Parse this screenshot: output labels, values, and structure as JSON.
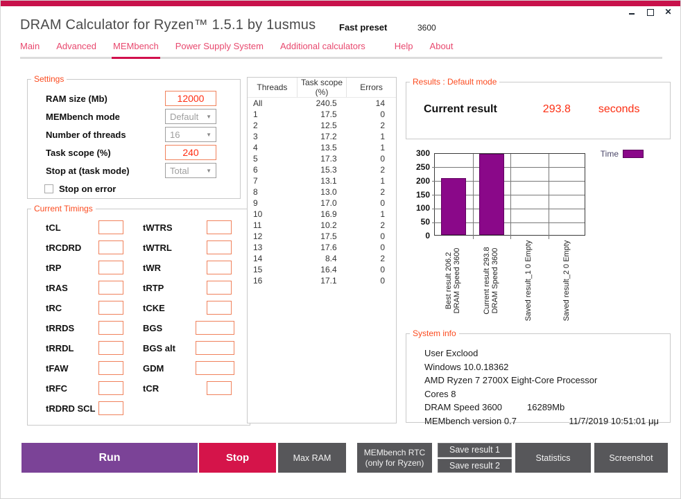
{
  "window": {
    "title": "DRAM Calculator for Ryzen™ 1.5.1 by 1usmus",
    "preset_label": "Fast preset",
    "preset_value": "3600"
  },
  "tabs": [
    {
      "label": "Main",
      "active": false
    },
    {
      "label": "Advanced",
      "active": false
    },
    {
      "label": "MEMbench",
      "active": true
    },
    {
      "label": "Power Supply System",
      "active": false
    },
    {
      "label": "Additional calculators",
      "active": false
    },
    {
      "label": "Help",
      "active": false,
      "gap_before": true
    },
    {
      "label": "About",
      "active": false
    }
  ],
  "icons": {
    "dropdown_arrow": "▼"
  },
  "settings": {
    "title": "Settings",
    "fields": [
      {
        "label": "RAM size (Mb)",
        "type": "input",
        "value": "12000"
      },
      {
        "label": "MEMbench mode",
        "type": "select",
        "value": "Default"
      },
      {
        "label": "Number of threads",
        "type": "select",
        "value": "16"
      },
      {
        "label": "Task scope (%)",
        "type": "input",
        "value": "240"
      },
      {
        "label": "Stop at (task mode)",
        "type": "select",
        "value": "Total"
      }
    ],
    "checkbox": {
      "label": "Stop on error",
      "checked": false
    }
  },
  "timings": {
    "title": "Current Timings",
    "left": [
      "tCL",
      "tRCDRD",
      "tRP",
      "tRAS",
      "tRC",
      "tRRDS",
      "tRRDL",
      "tFAW",
      "tRFC",
      "tRDRD SCL"
    ],
    "right": [
      {
        "label": "tWTRS",
        "wide": false
      },
      {
        "label": "tWTRL",
        "wide": false
      },
      {
        "label": "tWR",
        "wide": false
      },
      {
        "label": "tRTP",
        "wide": false
      },
      {
        "label": "tCKE",
        "wide": false
      },
      {
        "label": "BGS",
        "wide": true
      },
      {
        "label": "BGS alt",
        "wide": true
      },
      {
        "label": "GDM",
        "wide": true
      },
      {
        "label": "tCR",
        "wide": false
      }
    ]
  },
  "threads_table": {
    "columns": [
      "Threads",
      "Task scope (%)",
      "Errors"
    ],
    "rows": [
      [
        "All",
        "240.5",
        "14"
      ],
      [
        "1",
        "17.5",
        "0"
      ],
      [
        "2",
        "12.5",
        "2"
      ],
      [
        "3",
        "17.2",
        "1"
      ],
      [
        "4",
        "13.5",
        "1"
      ],
      [
        "5",
        "17.3",
        "0"
      ],
      [
        "6",
        "15.3",
        "2"
      ],
      [
        "7",
        "13.1",
        "1"
      ],
      [
        "8",
        "13.0",
        "2"
      ],
      [
        "9",
        "17.0",
        "0"
      ],
      [
        "10",
        "16.9",
        "1"
      ],
      [
        "11",
        "10.2",
        "2"
      ],
      [
        "12",
        "17.5",
        "0"
      ],
      [
        "13",
        "17.6",
        "0"
      ],
      [
        "14",
        "8.4",
        "2"
      ],
      [
        "15",
        "16.4",
        "0"
      ],
      [
        "16",
        "17.1",
        "0"
      ]
    ]
  },
  "results": {
    "title": "Results : Default mode",
    "label": "Current result",
    "value": "293.8",
    "unit": "seconds"
  },
  "chart_data": {
    "type": "bar",
    "title": "",
    "series_name": "Time",
    "categories": [
      "Best result 206.2 DRAM Speed 3600",
      "Current result 293.8 DRAM Speed 3600",
      "Saved result_1 0 Empty",
      "Saved result_2 0 Empty"
    ],
    "category_lines": [
      [
        "Best result 206.2",
        "DRAM Speed 3600"
      ],
      [
        "Current result 293.8",
        "DRAM Speed 3600"
      ],
      [
        "Saved result_1 0 Empty"
      ],
      [
        "Saved result_2 0 Empty"
      ]
    ],
    "values": [
      206.2,
      293.8,
      0,
      0
    ],
    "ylim": [
      0,
      300
    ],
    "yticks": [
      0,
      50,
      100,
      150,
      200,
      250,
      300
    ],
    "grid": true,
    "legend_position": "top-right",
    "bar_color": "#8A0889"
  },
  "system_info": {
    "title": "System info",
    "lines": [
      "User Exclood",
      "Windows 10.0.18362",
      "AMD Ryzen 7 2700X Eight-Core Processor",
      "Cores 8"
    ],
    "dram_line": {
      "left": "DRAM Speed 3600",
      "right": "16289Mb"
    },
    "version_line": {
      "left": "MEMbench version 0.7",
      "right": "11/7/2019 10:51:01 μμ"
    }
  },
  "actions": {
    "run": "Run",
    "stop": "Stop",
    "max_ram": "Max RAM",
    "membench_rtc_line1": "MEMbench RTC",
    "membench_rtc_line2": "(only for Ryzen)",
    "save1": "Save result 1",
    "save2": "Save result 2",
    "statistics": "Statistics",
    "screenshot": "Screenshot"
  },
  "colors": {
    "accent_crimson": "#C8114B",
    "tab_pink": "#E8486E",
    "group_label_orange": "#FB4A1E",
    "input_border_orange": "#F0815B",
    "input_text_red": "#FF2D12",
    "bar_purple": "#8A0889",
    "run_purple": "#7B4397",
    "stop_crimson": "#D5144A",
    "button_gray": "#57575A"
  }
}
